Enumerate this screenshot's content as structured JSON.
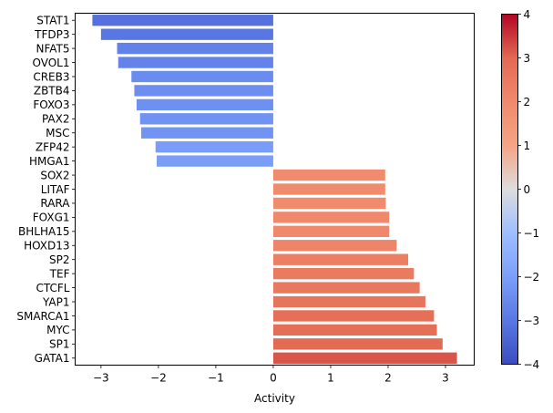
{
  "chart_data": {
    "type": "bar",
    "orientation": "horizontal",
    "title": "",
    "xlabel": "Activity",
    "ylabel": "",
    "xlim": [
      -3.45,
      3.5
    ],
    "xticks": [
      -3,
      -2,
      -1,
      0,
      1,
      2,
      3
    ],
    "xtick_labels": [
      "−3",
      "−2",
      "−1",
      "0",
      "1",
      "2",
      "3"
    ],
    "grid": false,
    "legend": "none",
    "categories": [
      "STAT1",
      "TFDP3",
      "NFAT5",
      "OVOL1",
      "CREB3",
      "ZBTB4",
      "FOXO3",
      "PAX2",
      "MSC",
      "ZFP42",
      "HMGA1",
      "SOX2",
      "LITAF",
      "RARA",
      "FOXG1",
      "BHLHA15",
      "HOXD13",
      "SP2",
      "TEF",
      "CTCFL",
      "YAP1",
      "SMARCA1",
      "MYC",
      "SP1",
      "GATA1"
    ],
    "values": [
      -3.15,
      -3.0,
      -2.72,
      -2.7,
      -2.47,
      -2.42,
      -2.38,
      -2.32,
      -2.3,
      -2.05,
      -2.03,
      1.95,
      1.95,
      1.96,
      2.02,
      2.02,
      2.15,
      2.35,
      2.45,
      2.55,
      2.65,
      2.8,
      2.85,
      2.95,
      3.2
    ],
    "colorbar": {
      "colormap": "coolwarm",
      "range": [
        -4,
        4
      ],
      "ticks": [
        -4,
        -3,
        -2,
        -1,
        0,
        1,
        2,
        3,
        4
      ],
      "tick_labels": [
        "−4",
        "−3",
        "−2",
        "−1",
        "0",
        "1",
        "2",
        "3",
        "4"
      ]
    }
  }
}
